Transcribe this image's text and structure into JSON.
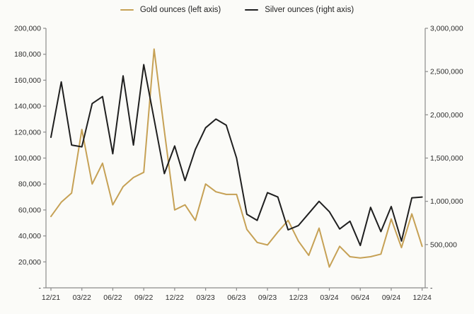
{
  "chart_data": {
    "type": "line",
    "title": "",
    "xlabel": "",
    "ylabel_left": "",
    "ylabel_right": "",
    "grid": false,
    "legend_position": "top-center",
    "axis_color": "#8C8C8C",
    "text_color": "#2E2E2E",
    "background_color": "#FBFBF8",
    "x": [
      "12/21",
      "01/22",
      "02/22",
      "03/22",
      "04/22",
      "05/22",
      "06/22",
      "07/22",
      "08/22",
      "09/22",
      "10/22",
      "11/22",
      "12/22",
      "01/23",
      "02/23",
      "03/23",
      "04/23",
      "05/23",
      "06/23",
      "07/23",
      "08/23",
      "09/23",
      "10/23",
      "11/23",
      "12/23",
      "01/24",
      "02/24",
      "03/24",
      "04/24",
      "05/24",
      "06/24",
      "07/24",
      "08/24",
      "09/24",
      "10/24",
      "11/24",
      "12/24"
    ],
    "x_tick_labels": [
      "12/21",
      "03/22",
      "06/22",
      "09/22",
      "12/22",
      "03/23",
      "06/23",
      "09/23",
      "12/23",
      "03/24",
      "06/24",
      "09/24",
      "12/24"
    ],
    "left_axis": {
      "min": 0,
      "max": 200000,
      "step": 20000,
      "tick_labels": [
        "200,000",
        "180,000",
        "160,000",
        "140,000",
        "120,000",
        "100,000",
        "80,000",
        "60,000",
        "40,000",
        "20,000",
        "-"
      ]
    },
    "right_axis": {
      "min": 0,
      "max": 3000000,
      "step": 500000,
      "tick_labels": [
        "3,000,000",
        "2,500,000",
        "2,000,000",
        "1,500,000",
        "1,000,000",
        "500,000",
        "-"
      ]
    },
    "series": [
      {
        "name": "Gold ounces (left axis)",
        "axis": "left",
        "color": "#C6A155",
        "values": [
          55000,
          66000,
          73000,
          122000,
          80000,
          96000,
          64000,
          78000,
          85000,
          89000,
          184000,
          121000,
          60000,
          64000,
          52000,
          80000,
          74000,
          72000,
          72000,
          45000,
          35000,
          33000,
          43000,
          52000,
          36000,
          25000,
          46000,
          16000,
          32000,
          24000,
          23000,
          24000,
          26000,
          53000,
          31000,
          57000,
          32000
        ]
      },
      {
        "name": "Silver ounces (right axis)",
        "axis": "right",
        "color": "#1F1F1F",
        "values": [
          1740000,
          2380000,
          1650000,
          1630000,
          2130000,
          2210000,
          1550000,
          2450000,
          1650000,
          2580000,
          1950000,
          1320000,
          1640000,
          1240000,
          1600000,
          1850000,
          1950000,
          1880000,
          1500000,
          850000,
          780000,
          1100000,
          1050000,
          670000,
          720000,
          860000,
          1000000,
          880000,
          680000,
          770000,
          490000,
          930000,
          650000,
          940000,
          540000,
          1040000,
          1050000
        ]
      }
    ]
  }
}
